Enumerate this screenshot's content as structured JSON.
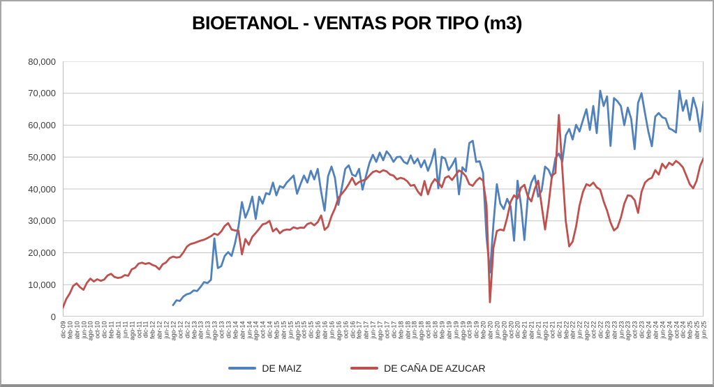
{
  "chart_data": {
    "type": "line",
    "title": "BIOETANOL - VENTAS POR TIPO (m3)",
    "xlabel": "",
    "ylabel": "",
    "ylim": [
      0,
      80000
    ],
    "grid": true,
    "legend_position": "bottom",
    "y_tick_labels": [
      "80,000",
      "70,000",
      "60,000",
      "50,000",
      "40,000",
      "30,000",
      "20,000",
      "10,000",
      "0"
    ],
    "x_tick_labels": [
      "dic-09",
      "feb-10",
      "abr-10",
      "jun-10",
      "ago-10",
      "oct-10",
      "dic-10",
      "feb-11",
      "abr-11",
      "jun-11",
      "ago-11",
      "oct-11",
      "dic-11",
      "feb-12",
      "abr-12",
      "jun-12",
      "ago-12",
      "oct-12",
      "dic-12",
      "feb-13",
      "abr-13",
      "jun-13",
      "ago-13",
      "oct-13",
      "dic-13",
      "feb-14",
      "abr-14",
      "jun-14",
      "ago-14",
      "oct-14",
      "dic-14",
      "feb-15",
      "abr-15",
      "jun-15",
      "ago-15",
      "oct-15",
      "dic-15",
      "feb-16",
      "abr-16",
      "jun-16",
      "ago-16",
      "oct-16",
      "dic-16",
      "feb-17",
      "abr-17",
      "jun-17",
      "ago-17",
      "oct-17",
      "dic-17",
      "feb-18",
      "abr-18",
      "jun-18",
      "ago-18",
      "oct-18",
      "dic-18",
      "feb-19",
      "abr-19",
      "jun-19",
      "ago-19",
      "oct-19",
      "dic-19",
      "feb-20",
      "abr-20",
      "jun-20",
      "ago-20",
      "oct-20",
      "dic-20",
      "feb-21",
      "abr-21",
      "jun-21",
      "ago-21",
      "oct-21",
      "dic-21",
      "feb-22",
      "abr-22",
      "jun-22",
      "ago-22",
      "oct-22",
      "dic-22",
      "feb-23",
      "abr-23",
      "jun-23",
      "ago-23",
      "oct-23",
      "dic-23",
      "feb-24",
      "abr-24",
      "jun-24",
      "ago-24",
      "oct-24",
      "dic-24",
      "feb-25",
      "abr-25",
      "jun-25"
    ],
    "months_total": 187,
    "x_label_every_n_months": 2,
    "colors": {
      "grid": "#c6c6c6",
      "plot_border": "#bfbfbf",
      "axis": "#9a9a9a"
    },
    "series": [
      {
        "name": "DE MAIZ",
        "color": "#4F81BD",
        "start_month_index": 32,
        "values": [
          3600,
          5100,
          4900,
          6300,
          7000,
          7300,
          8200,
          8000,
          9300,
          10800,
          10500,
          11500,
          24500,
          15200,
          15800,
          19000,
          20200,
          19000,
          23000,
          28200,
          35900,
          31000,
          33700,
          37600,
          30600,
          37600,
          35400,
          38700,
          38300,
          42000,
          38000,
          40900,
          40400,
          42000,
          43100,
          44200,
          38500,
          41500,
          44200,
          42000,
          45700,
          43000,
          46300,
          39100,
          33200,
          44000,
          47000,
          43500,
          35000,
          40400,
          46300,
          47400,
          44500,
          44000,
          46300,
          39800,
          44000,
          48100,
          50700,
          48500,
          51400,
          49000,
          51800,
          50500,
          48500,
          50000,
          50100,
          48500,
          47900,
          50500,
          48000,
          49500,
          46800,
          49000,
          45700,
          48500,
          52500,
          40200,
          50100,
          49500,
          45900,
          47500,
          49600,
          38300,
          46800,
          45500,
          54400,
          55100,
          48500,
          48700,
          45000,
          25000,
          13800,
          28900,
          41500,
          35400,
          33700,
          36900,
          34500,
          23800,
          42600,
          35000,
          24000,
          37600,
          42000,
          44200,
          37600,
          39500,
          47000,
          46000,
          43500,
          49600,
          51100,
          48500,
          56800,
          58800,
          55500,
          60100,
          58000,
          61600,
          65000,
          58500,
          66000,
          57500,
          70800,
          66000,
          69000,
          53500,
          68500,
          67500,
          66000,
          60000,
          65500,
          62000,
          52500,
          67000,
          70000,
          63800,
          57900,
          53400,
          62700,
          63800,
          62500,
          62100,
          59000,
          58500,
          57700,
          70800,
          64500,
          67800,
          61600,
          68600,
          65000,
          58000,
          67300
        ]
      },
      {
        "name": "DE CAÑA DE AZUCAR",
        "color": "#C0504D",
        "start_month_index": 0,
        "values": [
          2800,
          5500,
          7200,
          9600,
          10400,
          9200,
          8400,
          10600,
          11900,
          11000,
          11700,
          11200,
          11600,
          12900,
          13400,
          12400,
          12100,
          12300,
          13000,
          12800,
          14800,
          15300,
          16600,
          16900,
          16500,
          16800,
          16200,
          15800,
          14800,
          16400,
          17000,
          18300,
          18800,
          18500,
          18700,
          20100,
          21900,
          22700,
          23000,
          23400,
          23800,
          24100,
          24600,
          25200,
          26000,
          25600,
          26700,
          28400,
          29300,
          27300,
          27000,
          26900,
          19500,
          24300,
          22500,
          25000,
          26200,
          27500,
          28900,
          29200,
          30000,
          26700,
          27600,
          26100,
          27000,
          27300,
          27200,
          28000,
          27600,
          27900,
          27800,
          29000,
          29400,
          28600,
          29600,
          31700,
          27200,
          28200,
          31500,
          33900,
          37200,
          38500,
          39800,
          41500,
          43500,
          41300,
          42200,
          42600,
          43000,
          44200,
          45300,
          45700,
          45200,
          45900,
          45500,
          44500,
          44200,
          43000,
          43500,
          43200,
          42400,
          41000,
          41300,
          39300,
          38000,
          42500,
          38300,
          41500,
          43100,
          42000,
          40500,
          43500,
          44000,
          42800,
          44300,
          45800,
          45200,
          44000,
          41500,
          41000,
          42500,
          43500,
          42600,
          35000,
          4500,
          21500,
          26800,
          27300,
          27000,
          31000,
          36000,
          38000,
          37000,
          40400,
          41300,
          37600,
          36100,
          40000,
          42600,
          34800,
          27300,
          35000,
          44200,
          45000,
          63200,
          46300,
          30000,
          22000,
          23500,
          28200,
          34800,
          39100,
          41500,
          41000,
          42000,
          40500,
          39800,
          36100,
          33200,
          29500,
          27000,
          27900,
          31000,
          35400,
          38000,
          37800,
          36500,
          32500,
          39100,
          42000,
          43000,
          43500,
          45900,
          44500,
          47900,
          46500,
          48200,
          47500,
          48800,
          48000,
          46800,
          44200,
          41500,
          40200,
          42600,
          47200,
          49600
        ]
      }
    ]
  }
}
